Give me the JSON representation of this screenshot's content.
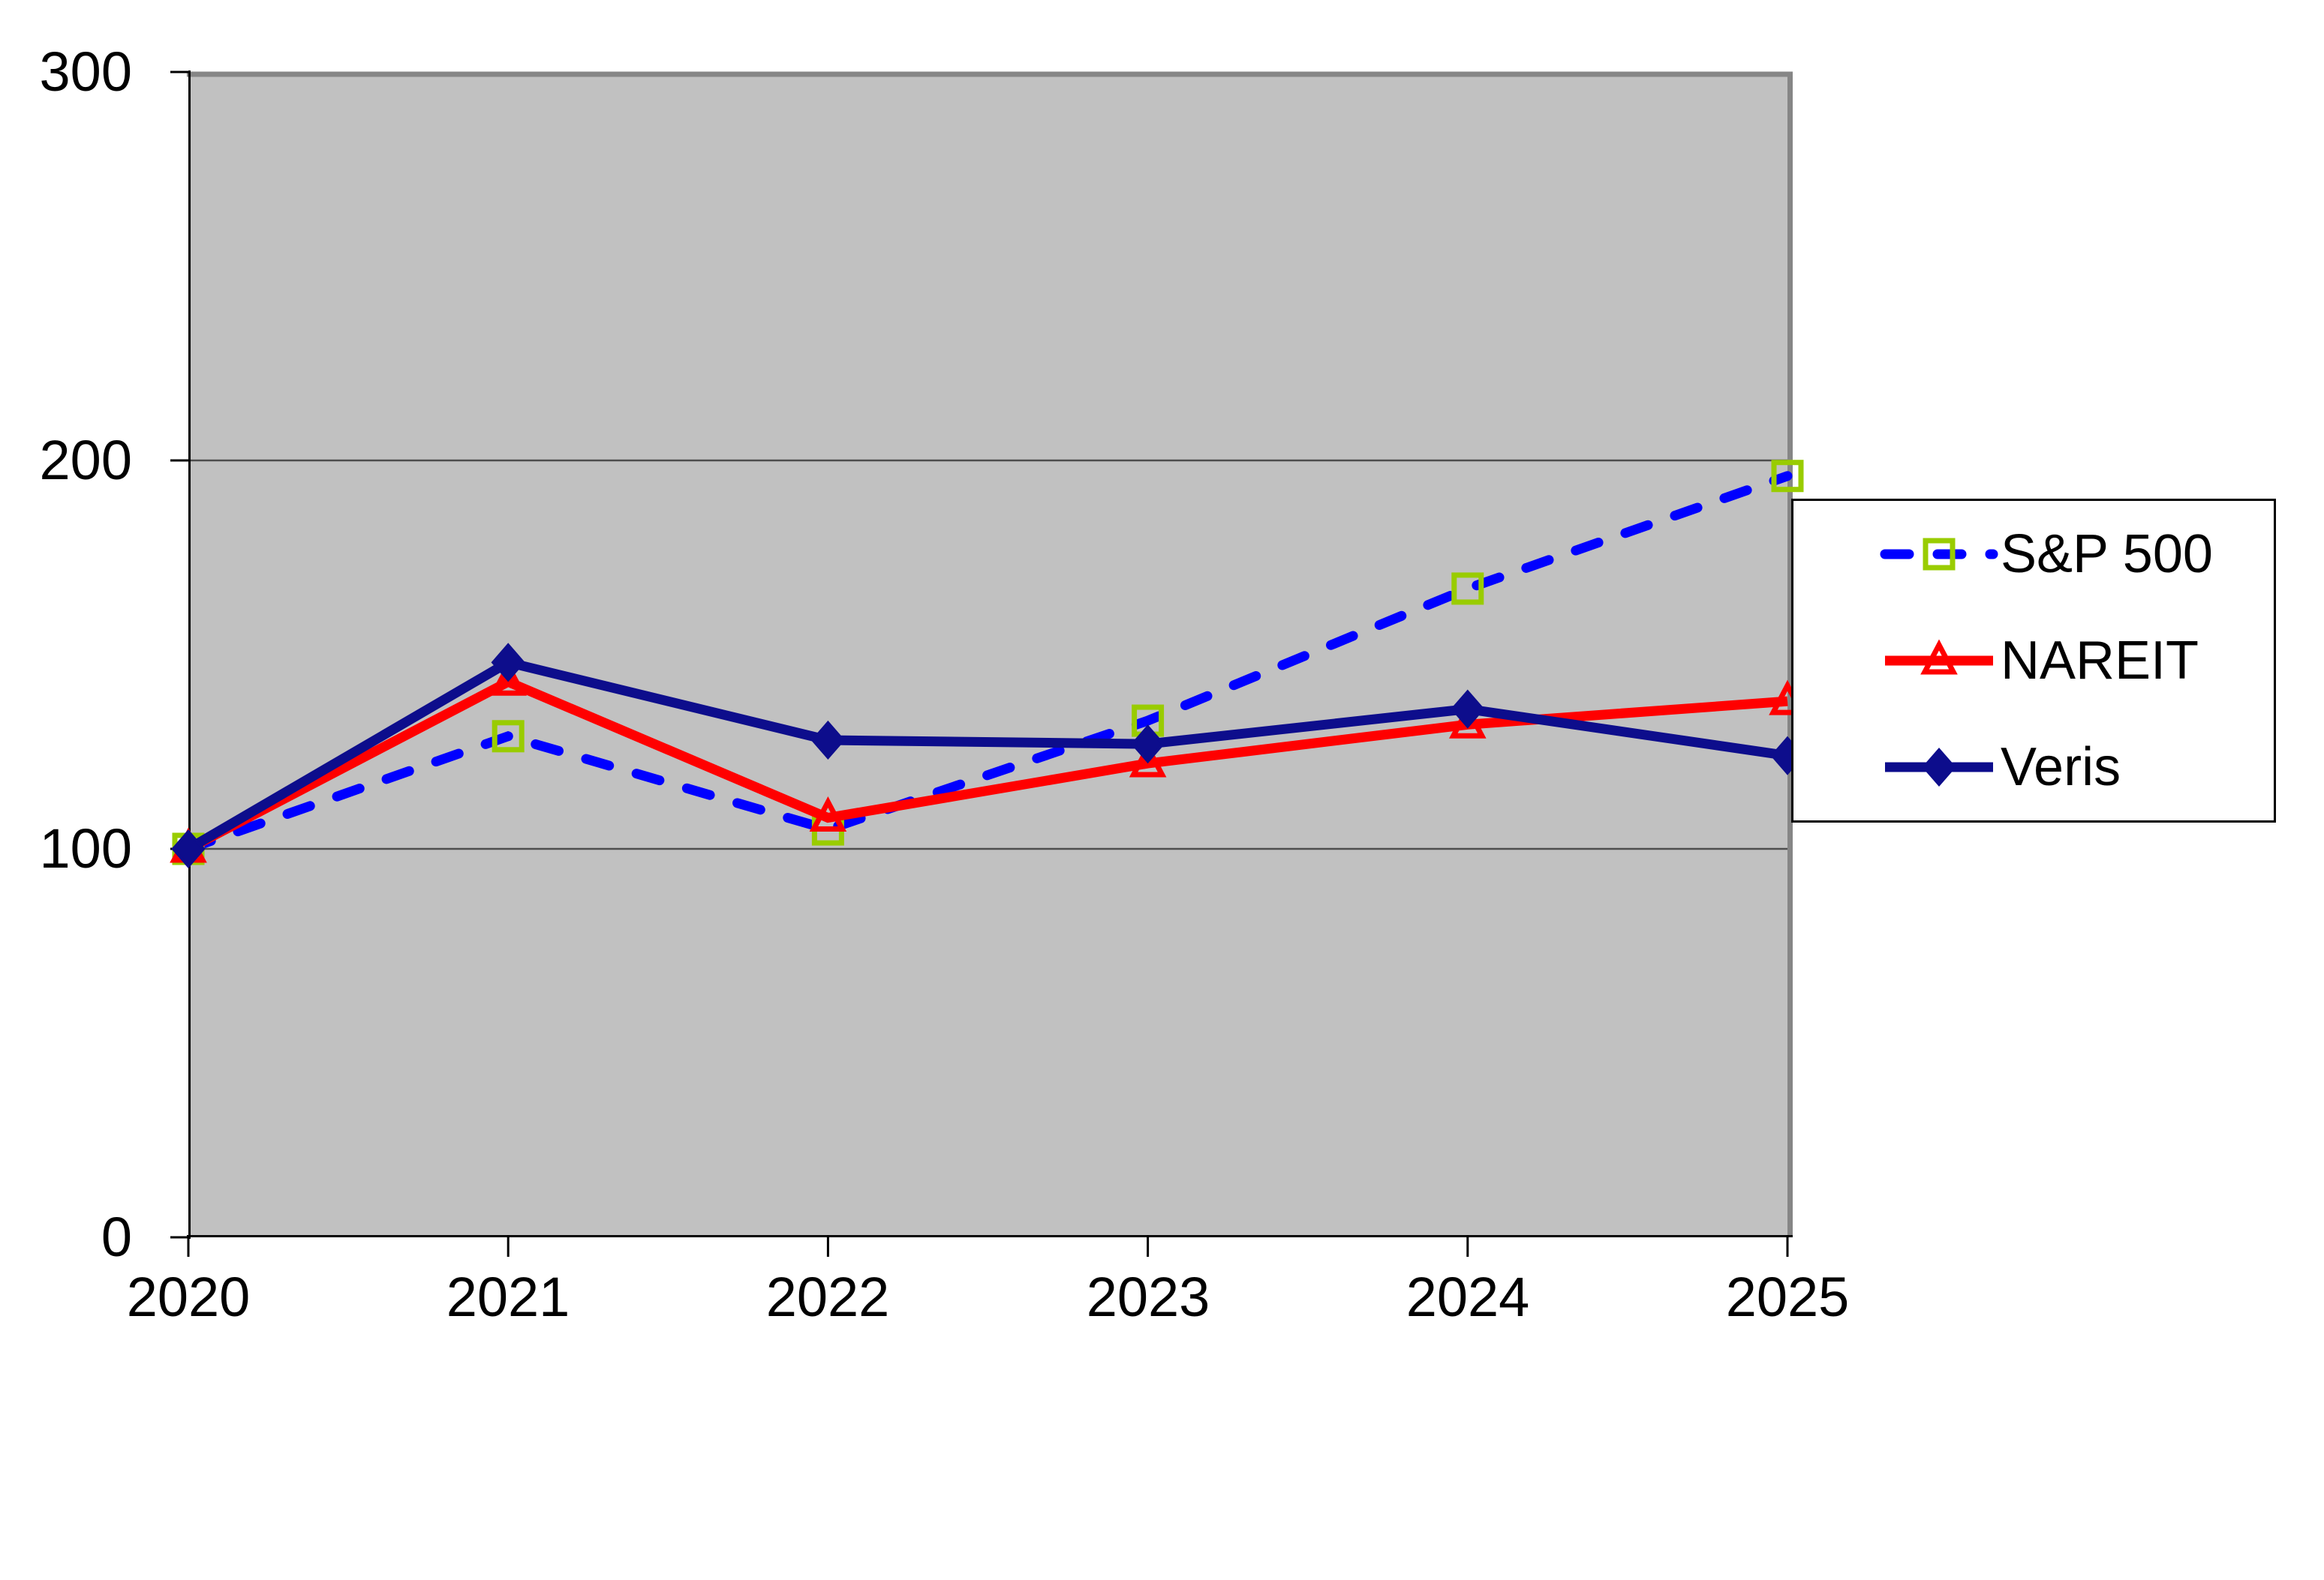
{
  "chart_data": {
    "type": "line",
    "title": "",
    "x": [
      2020,
      2021,
      2022,
      2023,
      2024,
      2025
    ],
    "xlim": [
      2020,
      2025
    ],
    "ylim": [
      0,
      300
    ],
    "yticks": [
      300,
      200,
      100,
      0
    ],
    "grid": "horizontal gridlines at 100 and 200",
    "plot_background": "#c1c1c1",
    "plot_border_color": "#868686",
    "axis_color": "#000000",
    "gridline_color": "#4d4d4d",
    "legend_position": "right",
    "series": [
      {
        "name": "S&P 500",
        "values": [
          100,
          129,
          105,
          133,
          167,
          196
        ],
        "color": "#0000ff",
        "line_style": "dashed",
        "marker": "square-open",
        "marker_color": "#99cc00"
      },
      {
        "name": "NAREIT",
        "values": [
          100,
          143,
          108,
          122,
          132,
          138
        ],
        "color": "#ff0000",
        "line_style": "solid",
        "marker": "triangle-open",
        "marker_color": "#ff0000"
      },
      {
        "name": "Veris",
        "values": [
          100,
          148,
          128,
          127,
          136,
          124
        ],
        "color": "#0d0d8c",
        "line_style": "solid",
        "marker": "diamond-filled",
        "marker_color": "#0d0d8c"
      }
    ]
  }
}
